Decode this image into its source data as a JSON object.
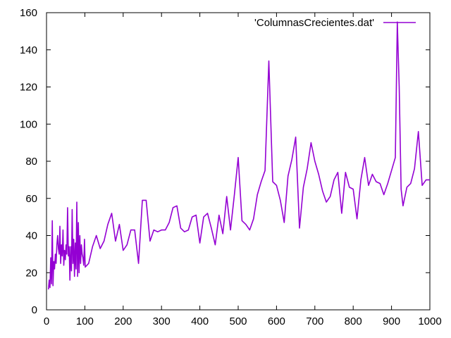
{
  "chart_data": {
    "type": "line",
    "title": "",
    "xlabel": "",
    "ylabel": "",
    "xlim": [
      0,
      1000
    ],
    "ylim": [
      0,
      160
    ],
    "x_ticks": [
      "0",
      "100",
      "200",
      "300",
      "400",
      "500",
      "600",
      "700",
      "800",
      "900",
      "1000"
    ],
    "y_ticks": [
      "0",
      "20",
      "40",
      "60",
      "80",
      "100",
      "120",
      "140",
      "160"
    ],
    "grid": false,
    "legend_position": "top-right",
    "line_color": "#9400d3",
    "series": [
      {
        "name": "'ColumnasCrecientes.dat'",
        "x": [
          5,
          7,
          9,
          11,
          13,
          15,
          17,
          19,
          21,
          23,
          25,
          27,
          29,
          31,
          33,
          35,
          37,
          39,
          41,
          43,
          45,
          47,
          49,
          51,
          53,
          55,
          57,
          59,
          61,
          63,
          65,
          67,
          69,
          71,
          73,
          75,
          77,
          79,
          81,
          83,
          85,
          87,
          89,
          91,
          93,
          95,
          97,
          99,
          101,
          110,
          120,
          130,
          140,
          150,
          160,
          170,
          180,
          190,
          200,
          210,
          220,
          230,
          240,
          250,
          260,
          270,
          280,
          290,
          300,
          310,
          320,
          330,
          340,
          350,
          360,
          370,
          380,
          390,
          400,
          410,
          420,
          430,
          440,
          450,
          460,
          470,
          480,
          490,
          500,
          510,
          520,
          530,
          540,
          550,
          560,
          570,
          580,
          590,
          600,
          610,
          620,
          630,
          640,
          650,
          660,
          670,
          680,
          690,
          700,
          710,
          720,
          730,
          740,
          750,
          760,
          770,
          780,
          790,
          800,
          810,
          820,
          830,
          840,
          850,
          860,
          870,
          880,
          890,
          900,
          910,
          915,
          920,
          925,
          930,
          940,
          950,
          960,
          970,
          980,
          990,
          1000
        ],
        "values": [
          11,
          16,
          12,
          28,
          14,
          48,
          13,
          26,
          22,
          30,
          25,
          35,
          40,
          33,
          30,
          45,
          25,
          35,
          29,
          43,
          24,
          32,
          27,
          35,
          30,
          55,
          29,
          34,
          16,
          34,
          21,
          54,
          25,
          38,
          18,
          36,
          22,
          58,
          18,
          47,
          20,
          40,
          25,
          35,
          30,
          28,
          24,
          38,
          23,
          25,
          34,
          40,
          33,
          37,
          46,
          52,
          37,
          46,
          32,
          35,
          43,
          43,
          25,
          59,
          59,
          37,
          43,
          42,
          43,
          43,
          47,
          55,
          56,
          44,
          42,
          43,
          50,
          51,
          36,
          50,
          52,
          44,
          35,
          51,
          41,
          61,
          43,
          62,
          82,
          48,
          46,
          43,
          49,
          62,
          69,
          75,
          134,
          69,
          67,
          59,
          47,
          72,
          81,
          93,
          44,
          66,
          76,
          90,
          80,
          73,
          64,
          58,
          61,
          70,
          74,
          52,
          74,
          66,
          65,
          49,
          70,
          82,
          67,
          73,
          69,
          68,
          62,
          68,
          75,
          82,
          155,
          120,
          65,
          56,
          66,
          68,
          76,
          96,
          67,
          70,
          70
        ]
      }
    ]
  }
}
